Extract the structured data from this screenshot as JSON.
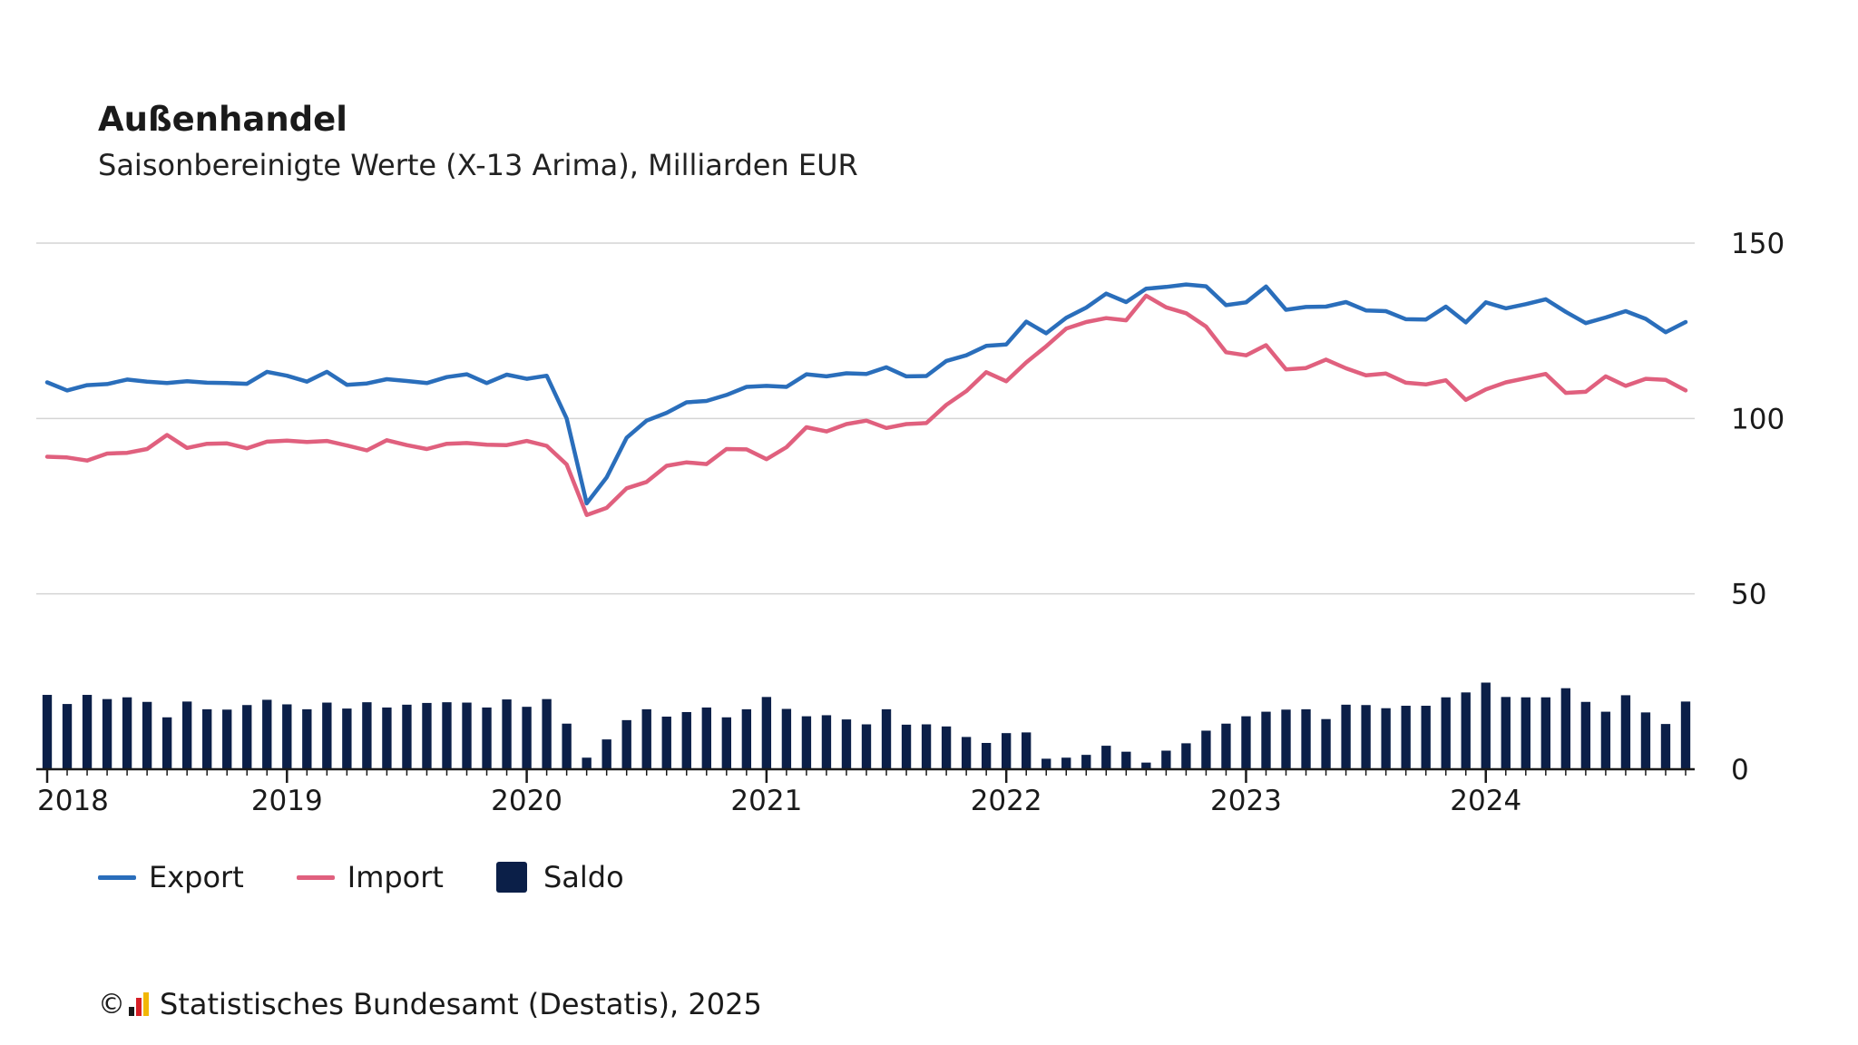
{
  "chart_data": {
    "type": "line+bar",
    "title": "Außenhandel",
    "subtitle": "Saisonbereinigte Werte (X-13 Arima), Milliarden EUR",
    "x_start": "2018-01",
    "x_end": "2024-11",
    "x_tick_labels": [
      "2018",
      "2019",
      "2020",
      "2021",
      "2022",
      "2023",
      "2024"
    ],
    "y_ticks": [
      0,
      50,
      100,
      150
    ],
    "ylim": [
      0,
      150
    ],
    "y_axis_side": "right",
    "grid": true,
    "legend_position": "bottom-left",
    "series": [
      {
        "name": "Export",
        "type": "line",
        "color": "#2a6ebb",
        "values": [
          110.3,
          108.0,
          109.5,
          109.8,
          111.1,
          110.5,
          110.1,
          110.6,
          110.2,
          110.1,
          109.9,
          113.3,
          112.2,
          110.5,
          113.3,
          109.6,
          110.0,
          111.2,
          110.7,
          110.1,
          111.8,
          112.6,
          110.1,
          112.5,
          111.3,
          112.2,
          100.0,
          75.8,
          83.2,
          94.5,
          99.4,
          101.6,
          104.6,
          105.0,
          106.7,
          109.0,
          109.3,
          109.0,
          112.6,
          112.0,
          112.9,
          112.7,
          114.6,
          112.0,
          112.1,
          116.4,
          118.0,
          120.7,
          121.1,
          127.6,
          124.3,
          128.7,
          131.6,
          135.6,
          133.2,
          137.0,
          137.5,
          138.2,
          137.7,
          132.3,
          133.1,
          137.6,
          131.0,
          131.8,
          131.9,
          133.2,
          130.8,
          130.6,
          128.3,
          128.2,
          131.9,
          127.4,
          133.1,
          131.4,
          132.6,
          134.0,
          130.4,
          127.2,
          128.8,
          130.6,
          128.4,
          124.6,
          127.5
        ]
      },
      {
        "name": "Import",
        "type": "line",
        "color": "#e0607e",
        "values": [
          89.1,
          88.9,
          88.0,
          90.0,
          90.2,
          91.3,
          95.3,
          91.6,
          92.8,
          92.9,
          91.5,
          93.4,
          93.7,
          93.3,
          93.6,
          92.3,
          90.9,
          93.8,
          92.4,
          91.3,
          92.8,
          93.0,
          92.5,
          92.4,
          93.6,
          92.2,
          86.9,
          72.5,
          74.5,
          80.1,
          81.9,
          86.5,
          87.5,
          87.0,
          91.3,
          91.2,
          88.4,
          91.8,
          97.5,
          96.3,
          98.4,
          99.4,
          97.3,
          98.4,
          98.7,
          103.9,
          107.8,
          113.2,
          110.6,
          116.0,
          120.6,
          125.6,
          127.5,
          128.6,
          128.0,
          135.0,
          131.7,
          130.0,
          126.2,
          118.9,
          118.0,
          120.9,
          114.0,
          114.4,
          116.8,
          114.3,
          112.3,
          112.8,
          110.2,
          109.7,
          110.9,
          105.3,
          108.3,
          110.3,
          111.5,
          112.7,
          107.3,
          107.6,
          112.0,
          109.3,
          111.3,
          111.0,
          108.0
        ]
      },
      {
        "name": "Saldo",
        "type": "bar",
        "color": "#0b1f48",
        "values": [
          21.2,
          18.6,
          21.2,
          20.0,
          20.5,
          19.2,
          14.8,
          19.3,
          17.1,
          17.0,
          18.3,
          19.8,
          18.5,
          17.1,
          19.0,
          17.3,
          19.1,
          17.6,
          18.4,
          18.9,
          19.1,
          19.0,
          17.6,
          19.9,
          17.8,
          20.0,
          13.0,
          3.3,
          8.5,
          14.0,
          17.1,
          15.0,
          16.3,
          17.6,
          14.8,
          17.1,
          20.6,
          17.2,
          15.1,
          15.4,
          14.2,
          12.8,
          17.1,
          12.7,
          12.8,
          12.2,
          9.2,
          7.5,
          10.3,
          10.5,
          3.0,
          3.3,
          4.1,
          6.7,
          5.0,
          1.9,
          5.3,
          7.4,
          11.0,
          13.0,
          15.1,
          16.4,
          17.0,
          17.1,
          14.3,
          18.4,
          18.3,
          17.4,
          18.1,
          18.1,
          20.5,
          21.9,
          24.7,
          20.6,
          20.5,
          20.5,
          23.1,
          19.2,
          16.4,
          21.1,
          16.2,
          12.9,
          19.3
        ]
      }
    ]
  },
  "legend": {
    "items": [
      {
        "label": "Export",
        "color": "#2a6ebb"
      },
      {
        "label": "Import",
        "color": "#e0607e"
      },
      {
        "label": "Saldo",
        "color": "#0b1f48"
      }
    ]
  },
  "source": {
    "copyright": "©",
    "text": "Statistisches Bundesamt (Destatis), 2025"
  }
}
